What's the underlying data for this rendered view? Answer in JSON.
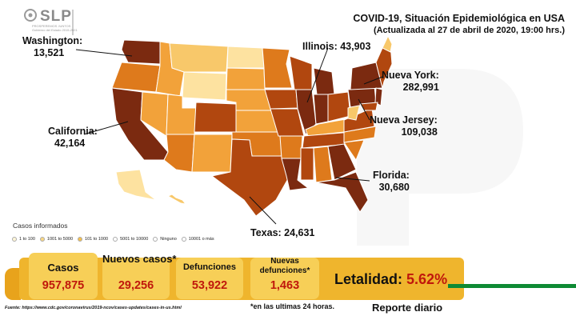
{
  "logo": {
    "brand": "SLP",
    "subtitle": "PROSPEREMOS JUNTOS Gobierno del Estado 2015-2021"
  },
  "header": {
    "title": "COVID-19, Situación Epidemiológica en USA",
    "subtitle": "(Actualizada al 27 de abril de 2020, 19:00 hrs.)"
  },
  "callouts": {
    "washington": {
      "name": "Washington:",
      "value": "13,521"
    },
    "california": {
      "name": "California:",
      "value": "42,164"
    },
    "illinois": {
      "name": "Illinois: 43,903"
    },
    "nueva_york": {
      "name": "Nueva York:",
      "value": "282,991"
    },
    "nueva_jersey": {
      "name": "Nueva Jersey:",
      "value": "109,038"
    },
    "florida": {
      "name": "Florida:",
      "value": "30,680"
    },
    "texas": {
      "name": "Texas: 24,631"
    }
  },
  "legend": {
    "title": "Casos informados",
    "items": [
      {
        "label": "1 to 100",
        "color": "#fff6d8"
      },
      {
        "label": "1001 to 5000",
        "color": "#f9d785"
      },
      {
        "label": "101 to 1000",
        "color": "#f6c04e"
      },
      {
        "label": "5001 to 10000",
        "color": "#ffffff"
      },
      {
        "label": "Ninguno",
        "color": "#ffffff"
      },
      {
        "label": "10001 o más",
        "color": "#ffffff"
      }
    ]
  },
  "stats": {
    "casos": {
      "label": "Casos",
      "value": "957,875"
    },
    "nuevos_casos": {
      "label": "Nuevos casos*",
      "value": "29,256"
    },
    "defunciones": {
      "label": "Defunciones",
      "value": "53,922"
    },
    "nuevas_defunciones": {
      "label1": "Nuevas",
      "label2": "defunciones*",
      "value": "1,463"
    },
    "letalidad": {
      "label": "Letalidad:",
      "value": "5.62%"
    }
  },
  "footer": {
    "fuente": "Fuente: https://www.cdc.gov/coronavirus/2019-ncov/cases-updates/cases-in-us.html",
    "footnote": "*en las ultimas 24 horas.",
    "reporte": "Reporte diario"
  },
  "colors": {
    "very_high": "#7b2a10",
    "high": "#b1470f",
    "mid_high": "#de7a1c",
    "mid": "#f2a23a",
    "low": "#f8c86a",
    "very_low": "#fde2a0",
    "value_red": "#c0180c",
    "bar_gold": "#efb52d",
    "box_gold": "#f7cf57",
    "stripe_green": "#0e8a34"
  }
}
